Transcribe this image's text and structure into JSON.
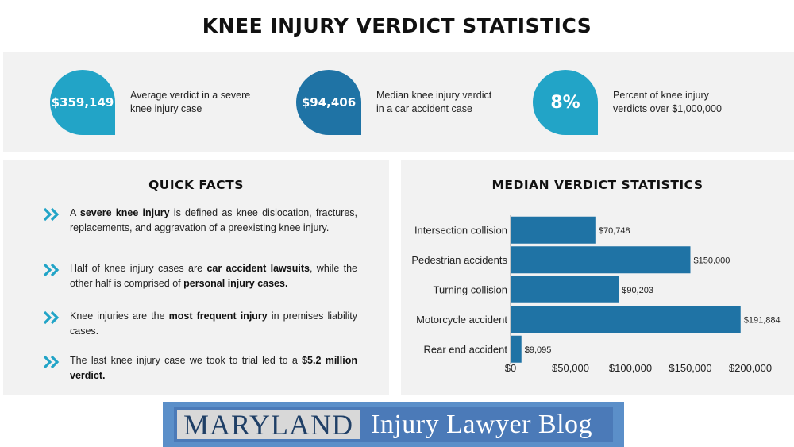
{
  "title": "KNEE INJURY VERDICT STATISTICS",
  "colors": {
    "accent_light": "#22a4c7",
    "accent_dark": "#1f73a5",
    "bar": "#1f73a5",
    "panel_bg": "#f2f2f2"
  },
  "stats": [
    {
      "value": "$359,149",
      "desc_line1": "Average verdict in a severe",
      "desc_line2": "knee injury case",
      "color": "#22a4c7"
    },
    {
      "value": "$94,406",
      "desc_line1": "Median knee injury verdict",
      "desc_line2": "in a car accident case",
      "color": "#1f73a5"
    },
    {
      "value": "8%",
      "desc_line1": "Percent  of  knee  injury",
      "desc_line2": "verdicts over $1,000,000",
      "color": "#22a4c7"
    }
  ],
  "quick_facts": {
    "heading": "QUICK FACTS",
    "icon": "double-chevron-right-icon",
    "facts": [
      {
        "segments": [
          {
            "text": "A ",
            "bold": false
          },
          {
            "text": "severe knee injury",
            "bold": true
          },
          {
            "text": " is defined as knee dislocation, fractures, replacements, and aggravation of a preexisting knee injury.",
            "bold": false
          }
        ]
      },
      {
        "segments": [
          {
            "text": "Half of knee injury cases are ",
            "bold": false
          },
          {
            "text": "car accident lawsuits",
            "bold": true
          },
          {
            "text": ", while the other half is comprised of ",
            "bold": false
          },
          {
            "text": "personal injury cases.",
            "bold": true
          }
        ]
      },
      {
        "segments": [
          {
            "text": "Knee injuries are the ",
            "bold": false
          },
          {
            "text": "most frequent injury",
            "bold": true
          },
          {
            "text": " in premises liability cases.",
            "bold": false
          }
        ]
      },
      {
        "segments": [
          {
            "text": "The last knee injury case we took to trial led to a ",
            "bold": false
          },
          {
            "text": "$5.2 million verdict.",
            "bold": true
          }
        ]
      }
    ]
  },
  "chart_data": {
    "type": "bar",
    "orientation": "horizontal",
    "title": "MEDIAN VERDICT STATISTICS",
    "categories": [
      "Intersection collision",
      "Pedestrian accidents",
      "Turning collision",
      "Motorcycle accident",
      "Rear end accident"
    ],
    "values": [
      70748,
      150000,
      90203,
      191884,
      9095
    ],
    "data_labels": [
      "$70,748",
      "$150,000",
      "$90,203",
      "$191,884",
      "$9,095"
    ],
    "xlim": [
      0,
      200000
    ],
    "xticks": [
      0,
      50000,
      100000,
      150000,
      200000
    ],
    "xtick_labels": [
      "$0",
      "$50,000",
      "$100,000",
      "$150,000",
      "$200,000"
    ],
    "grid": false,
    "color": "#1f73a5"
  },
  "logo": {
    "word1": "MARYLAND",
    "word2": "Injury Lawyer Blog"
  }
}
